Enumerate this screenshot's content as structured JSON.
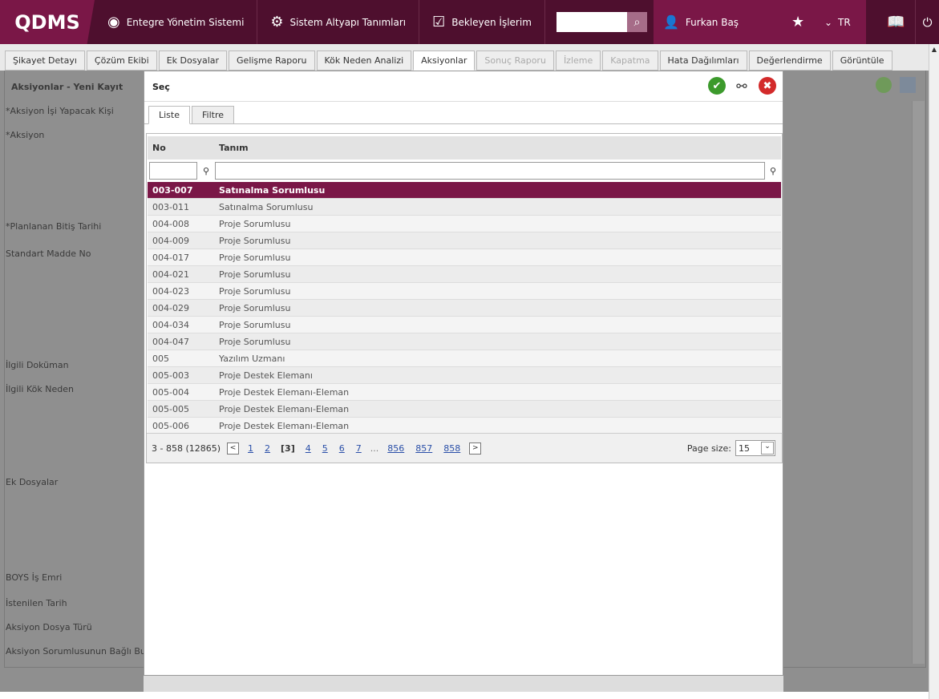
{
  "header": {
    "logo": "QDMS",
    "nav": [
      {
        "label": "Entegre Yönetim Sistemi",
        "icon": "q-icon"
      },
      {
        "label": "Sistem Altyapı Tanımları",
        "icon": "gear-icon"
      },
      {
        "label": "Bekleyen İşlerim",
        "icon": "clipboard-icon"
      }
    ],
    "search_value": "",
    "user": "Furkan Baş",
    "lang": "TR"
  },
  "tabs": [
    {
      "label": "Şikayet Detayı"
    },
    {
      "label": "Çözüm Ekibi"
    },
    {
      "label": "Ek Dosyalar"
    },
    {
      "label": "Gelişme Raporu"
    },
    {
      "label": "Kök Neden Analizi"
    },
    {
      "label": "Aksiyonlar",
      "active": true
    },
    {
      "label": "Sonuç Raporu",
      "disabled": true
    },
    {
      "label": "İzleme",
      "disabled": true
    },
    {
      "label": "Kapatma",
      "disabled": true
    },
    {
      "label": "Hata Dağılımları"
    },
    {
      "label": "Değerlendirme"
    },
    {
      "label": "Görüntüle"
    }
  ],
  "form": {
    "title": "Aksiyonlar - Yeni Kayıt",
    "labels": [
      "*Aksiyon İşi Yapacak Kişi",
      "*Aksiyon",
      "*Planlanan Bitiş Tarihi",
      "Standart Madde No",
      "İlgili Doküman",
      "İlgili Kök Neden",
      "Ek Dosyalar",
      "BOYS İş Emri",
      "İstenilen Tarih",
      "Aksiyon Dosya Türü",
      "Aksiyon Sorumlusunun Bağlı Bulund"
    ]
  },
  "modal": {
    "title": "Seç",
    "tabs": [
      "Liste",
      "Filtre"
    ],
    "columns": [
      "No",
      "Tanım"
    ],
    "rows": [
      [
        "003-007",
        "Satınalma Sorumlusu"
      ],
      [
        "003-011",
        "Satınalma Sorumlusu"
      ],
      [
        "004-008",
        "Proje Sorumlusu"
      ],
      [
        "004-009",
        "Proje Sorumlusu"
      ],
      [
        "004-017",
        "Proje Sorumlusu"
      ],
      [
        "004-021",
        "Proje Sorumlusu"
      ],
      [
        "004-023",
        "Proje Sorumlusu"
      ],
      [
        "004-029",
        "Proje Sorumlusu"
      ],
      [
        "004-034",
        "Proje Sorumlusu"
      ],
      [
        "004-047",
        "Proje Sorumlusu"
      ],
      [
        "005",
        "Yazılım Uzmanı"
      ],
      [
        "005-003",
        "Proje Destek Elemanı"
      ],
      [
        "005-004",
        "Proje Destek Elemanı-Eleman"
      ],
      [
        "005-005",
        "Proje Destek Elemanı-Eleman"
      ],
      [
        "005-006",
        "Proje Destek Elemanı-Eleman"
      ]
    ],
    "pager": {
      "summary": "3 - 858 (12865)",
      "pages_before": [
        "1",
        "2"
      ],
      "current": "[3]",
      "pages_after": [
        "4",
        "5",
        "6",
        "7"
      ],
      "ellipsis": "...",
      "last_pages": [
        "856",
        "857",
        "858"
      ],
      "page_size_label": "Page size:",
      "page_size": "15"
    }
  }
}
